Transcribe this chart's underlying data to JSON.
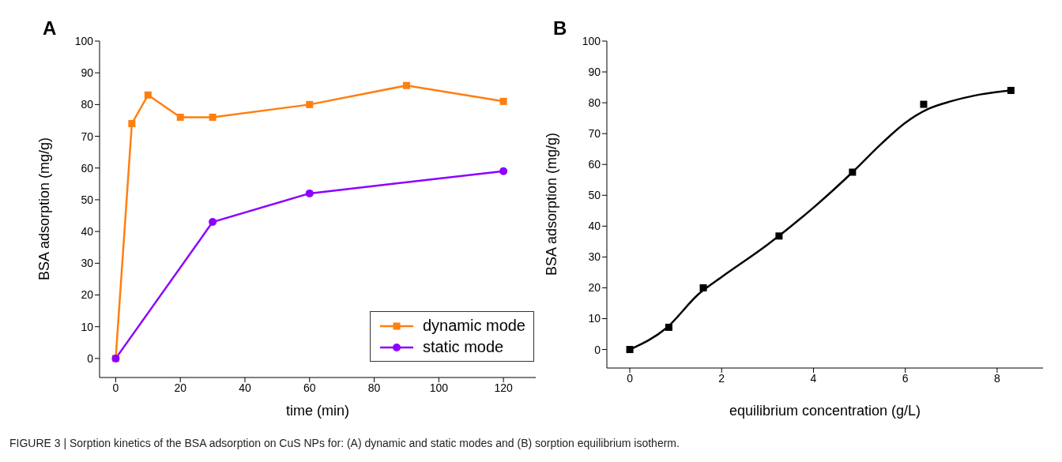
{
  "chart_data": [
    {
      "type": "line",
      "xlabel": "time (min)",
      "ylabel": "BSA adsorption (mg/g)",
      "xlim": [
        -5,
        130
      ],
      "xticks": [
        0,
        20,
        40,
        60,
        80,
        100,
        120
      ],
      "ylim": [
        -6,
        100
      ],
      "yticks": [
        0,
        10,
        20,
        30,
        40,
        50,
        60,
        70,
        80,
        90,
        100
      ],
      "legend": "bottom right",
      "annotations": [
        "A",
        "FIGURE 3 | Sorption kinetics of the BSA adsorption on CuS NPs for: (A) dynamic and static modes and (B) sorption equilibrium isotherm."
      ],
      "series": [
        {
          "name": "dynamic mode",
          "color": "#ff7f0e",
          "marker": "square",
          "x": [
            0,
            5,
            10,
            20,
            30,
            60,
            90,
            120
          ],
          "values": [
            0,
            74,
            83,
            76,
            76,
            80,
            86,
            81
          ]
        },
        {
          "name": "static mode",
          "color": "#8b00ff",
          "marker": "circle",
          "x": [
            0,
            30,
            60,
            120
          ],
          "values": [
            0,
            43,
            52,
            59
          ]
        }
      ]
    },
    {
      "type": "scatter",
      "xlabel": "equilibrium concentration (g/L)",
      "ylabel": "BSA adsorption (mg/g)",
      "xlim": [
        -0.5,
        9
      ],
      "xticks": [
        0,
        2,
        4,
        6,
        8
      ],
      "ylim": [
        -6,
        100
      ],
      "yticks": [
        0,
        10,
        20,
        30,
        40,
        50,
        60,
        70,
        80,
        90,
        100
      ],
      "annotations": [
        "B"
      ],
      "series": [
        {
          "type": "scatter",
          "color": "#000000",
          "marker": "square",
          "x": [
            0,
            0.85,
            1.6,
            3.25,
            4.85,
            6.4,
            8.3
          ],
          "values": [
            0,
            7.2,
            20,
            36.8,
            57.5,
            79.5,
            84
          ]
        },
        {
          "type": "line",
          "color": "#000000",
          "marker": "none",
          "x": [
            0,
            0.8,
            1.5,
            2,
            3,
            4,
            4.85,
            5.5,
            6,
            6.5,
            7,
            7.5,
            8.3
          ],
          "values": [
            0,
            7,
            18,
            23.5,
            34,
            46,
            57.5,
            67,
            73.5,
            78,
            80.5,
            82.3,
            84
          ]
        }
      ]
    }
  ]
}
